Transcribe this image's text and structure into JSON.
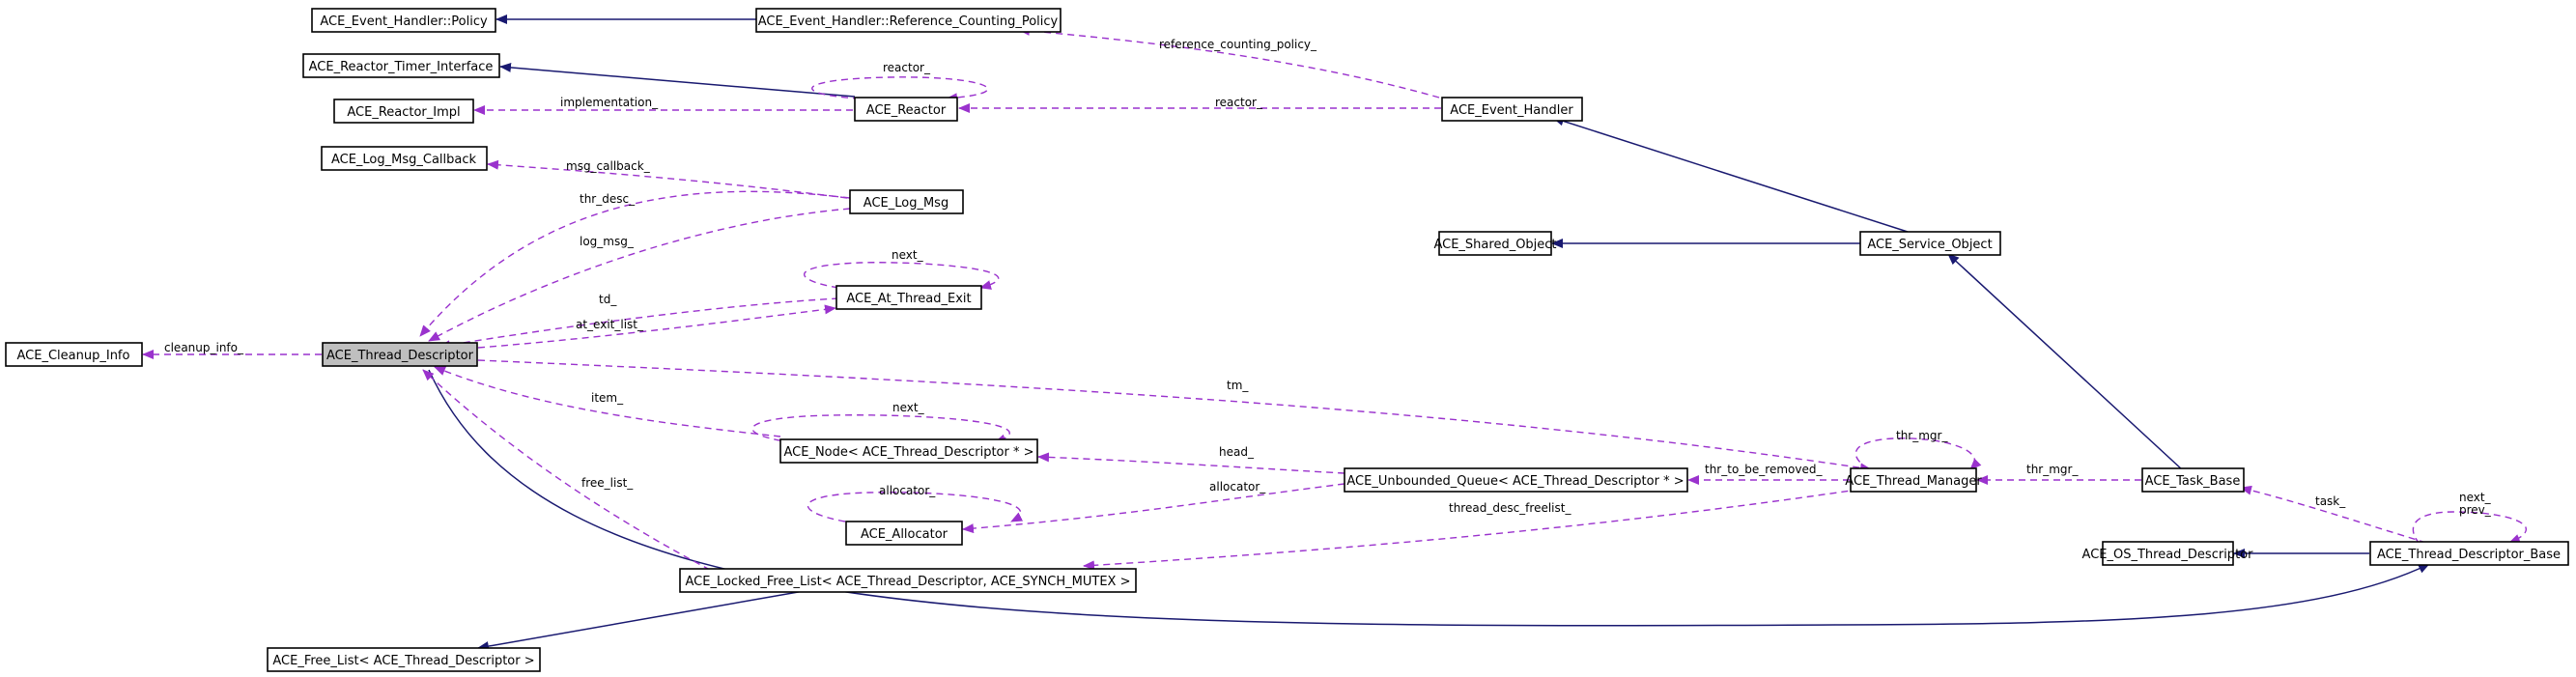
{
  "diagram": {
    "colors": {
      "inheritance": "#191970",
      "usage": "#9a32cd",
      "focus_fill": "#bfbfbf",
      "box_stroke": "#000000"
    },
    "nodes": {
      "event_handler_policy": "ACE_Event_Handler::Policy",
      "reference_counting_policy": "ACE_Event_Handler::Reference_Counting_Policy",
      "reactor_timer_interface": "ACE_Reactor_Timer_Interface",
      "reactor_impl": "ACE_Reactor_Impl",
      "reactor": "ACE_Reactor",
      "event_handler": "ACE_Event_Handler",
      "log_msg_callback": "ACE_Log_Msg_Callback",
      "log_msg": "ACE_Log_Msg",
      "shared_object": "ACE_Shared_Object",
      "service_object": "ACE_Service_Object",
      "at_thread_exit": "ACE_At_Thread_Exit",
      "cleanup_info": "ACE_Cleanup_Info",
      "thread_descriptor": "ACE_Thread_Descriptor",
      "node_thread_descriptor": "ACE_Node< ACE_Thread_Descriptor * >",
      "unbounded_queue": "ACE_Unbounded_Queue< ACE_Thread_Descriptor * >",
      "thread_manager": "ACE_Thread_Manager",
      "task_base": "ACE_Task_Base",
      "allocator": "ACE_Allocator",
      "locked_free_list": "ACE_Locked_Free_List< ACE_Thread_Descriptor, ACE_SYNCH_MUTEX >",
      "os_thread_descriptor": "ACE_OS_Thread_Descriptor",
      "thread_descriptor_base": "ACE_Thread_Descriptor_Base",
      "free_list": "ACE_Free_List< ACE_Thread_Descriptor >"
    },
    "edge_labels": {
      "reference_counting_policy": "reference_counting_policy_",
      "reactor_self": "reactor_",
      "implementation": "implementation_",
      "reactor_from_handler": "reactor_",
      "msg_callback": "msg_callback_",
      "thr_desc": "thr_desc_",
      "log_msg": "log_msg_",
      "next_exit": "next_",
      "td": "td_",
      "at_exit_list": "at_exit_list_",
      "cleanup_info": "cleanup_info_",
      "tm": "tm_",
      "item": "item_",
      "next_node": "next_",
      "head": "head_",
      "thr_mgr_self": "thr_mgr_",
      "thr_to_be_removed": "thr_to_be_removed_",
      "thr_mgr_task": "thr_mgr_",
      "allocator_self": "allocator_",
      "allocator": "allocator_",
      "free_list": "free_list_",
      "thread_desc_freelist": "thread_desc_freelist_",
      "task": "task_",
      "next_base": "next_",
      "prev_base": "prev_"
    }
  }
}
